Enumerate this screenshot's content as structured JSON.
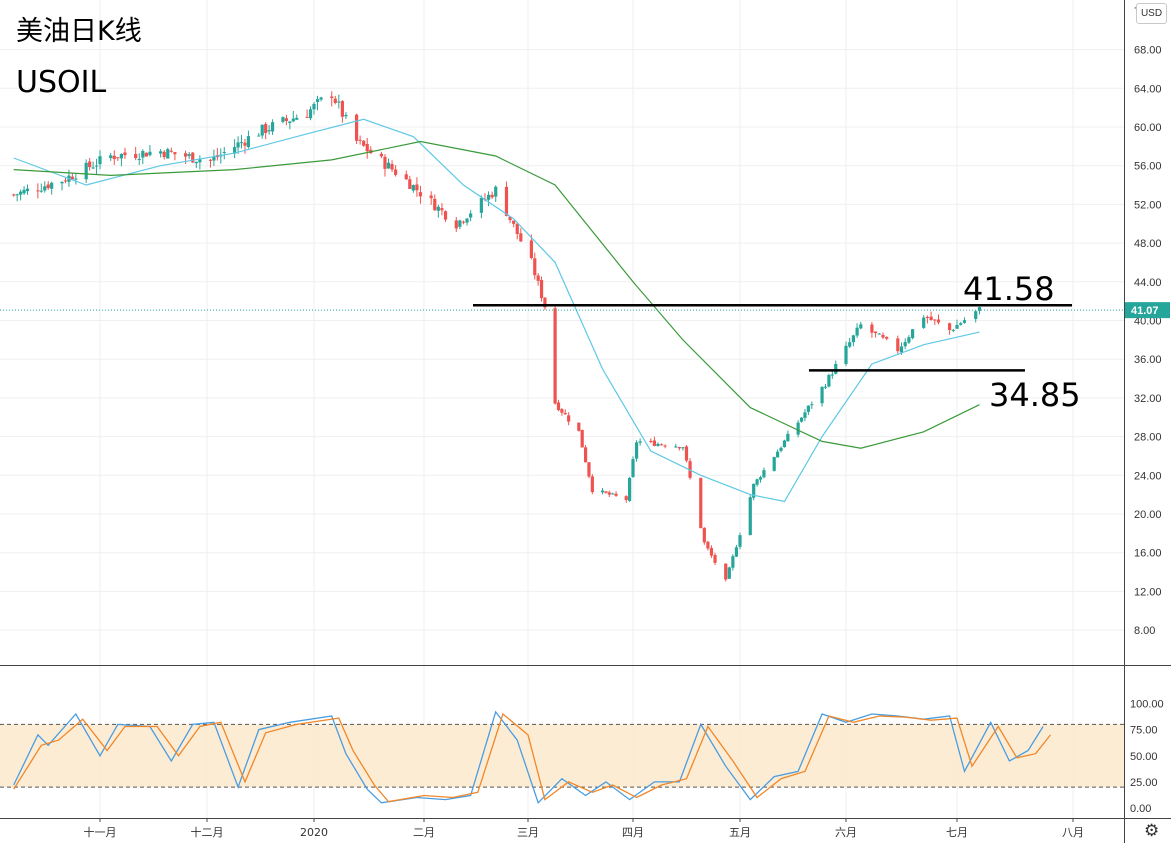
{
  "header": {
    "title_cn": "美油日K线",
    "title_symbol": "USOIL",
    "currency_button": "USD"
  },
  "settings_icon": "gear-icon",
  "levels": [
    {
      "value": 41.58,
      "label": "41.58"
    },
    {
      "value": 34.85,
      "label": "34.85"
    }
  ],
  "colors": {
    "up": "#26a69a",
    "down": "#ef5350",
    "sma_fast": "#5ec8e5",
    "sma_slow": "#3a9a3a",
    "stoch_k": "#4a9de0",
    "stoch_d": "#f0872a",
    "stoch_band": "#fde9cc"
  },
  "chart_data": [
    {
      "type": "candlestick",
      "title": "USOIL",
      "xaxis_ticks": [
        "十一月",
        "十二月",
        "2020",
        "二月",
        "三月",
        "四月",
        "五月",
        "六月",
        "七月",
        "八月"
      ],
      "yaxis_ticks": [
        "68.00",
        "64.00",
        "60.00",
        "56.00",
        "52.00",
        "48.00",
        "44.00",
        "40.00",
        "36.00",
        "32.00",
        "28.00",
        "24.00",
        "20.00",
        "16.00",
        "12.00",
        "8.00"
      ],
      "ylim": [
        4,
        69
      ],
      "last_price": "41.07",
      "horizontal_lines": [
        41.58,
        34.85
      ],
      "ohlc_anchors": [
        {
          "date": "2019-10-07",
          "close": 53.0
        },
        {
          "date": "2019-10-21",
          "close": 54.5
        },
        {
          "date": "2019-11-04",
          "close": 57.0
        },
        {
          "date": "2019-11-18",
          "close": 57.5
        },
        {
          "date": "2019-12-02",
          "close": 56.5
        },
        {
          "date": "2019-12-16",
          "close": 59.5
        },
        {
          "date": "2019-12-30",
          "close": 61.5
        },
        {
          "date": "2020-01-06",
          "close": 63.5
        },
        {
          "date": "2020-01-13",
          "close": 58.5
        },
        {
          "date": "2020-01-27",
          "close": 54.5
        },
        {
          "date": "2020-02-10",
          "close": 50.0
        },
        {
          "date": "2020-02-21",
          "close": 53.5
        },
        {
          "date": "2020-03-02",
          "close": 46.0
        },
        {
          "date": "2020-03-06",
          "close": 41.5
        },
        {
          "date": "2020-03-09",
          "close": 31.5
        },
        {
          "date": "2020-03-16",
          "close": 28.5
        },
        {
          "date": "2020-03-20",
          "close": 22.5
        },
        {
          "date": "2020-03-30",
          "close": 21.5
        },
        {
          "date": "2020-04-02",
          "close": 27.5
        },
        {
          "date": "2020-04-15",
          "close": 27.0
        },
        {
          "date": "2020-04-21",
          "close": 17.0
        },
        {
          "date": "2020-04-27",
          "close": 13.0
        },
        {
          "date": "2020-05-05",
          "close": 23.0
        },
        {
          "date": "2020-05-18",
          "close": 29.5
        },
        {
          "date": "2020-05-26",
          "close": 33.5
        },
        {
          "date": "2020-06-05",
          "close": 39.5
        },
        {
          "date": "2020-06-15",
          "close": 37.0
        },
        {
          "date": "2020-06-22",
          "close": 40.5
        },
        {
          "date": "2020-06-29",
          "close": 39.0
        },
        {
          "date": "2020-07-07",
          "close": 41.1
        }
      ],
      "series": [
        {
          "name": "",
          "type": "sma_fast",
          "points": [
            [
              "2019-10-07",
              56.8
            ],
            [
              "2019-10-28",
              54.0
            ],
            [
              "2019-11-18",
              56.0
            ],
            [
              "2019-12-09",
              57.3
            ],
            [
              "2019-12-30",
              59.3
            ],
            [
              "2020-01-15",
              60.8
            ],
            [
              "2020-01-29",
              59.0
            ],
            [
              "2020-02-12",
              54.0
            ],
            [
              "2020-02-26",
              50.5
            ],
            [
              "2020-03-09",
              46.0
            ],
            [
              "2020-03-23",
              35.0
            ],
            [
              "2020-04-06",
              26.5
            ],
            [
              "2020-04-20",
              24.0
            ],
            [
              "2020-05-04",
              22.0
            ],
            [
              "2020-05-14",
              21.3
            ],
            [
              "2020-05-25",
              28.0
            ],
            [
              "2020-06-08",
              35.5
            ],
            [
              "2020-06-22",
              37.5
            ],
            [
              "2020-07-07",
              38.8
            ]
          ]
        },
        {
          "name": "",
          "type": "sma_slow",
          "points": [
            [
              "2019-10-07",
              55.6
            ],
            [
              "2019-11-04",
              55.0
            ],
            [
              "2019-12-09",
              55.6
            ],
            [
              "2020-01-06",
              56.6
            ],
            [
              "2020-01-31",
              58.5
            ],
            [
              "2020-02-21",
              57.0
            ],
            [
              "2020-03-09",
              54.0
            ],
            [
              "2020-04-01",
              44.0
            ],
            [
              "2020-04-15",
              38.0
            ],
            [
              "2020-05-04",
              31.0
            ],
            [
              "2020-05-25",
              27.5
            ],
            [
              "2020-06-05",
              26.8
            ],
            [
              "2020-06-22",
              28.5
            ],
            [
              "2020-07-07",
              31.3
            ]
          ]
        }
      ]
    },
    {
      "type": "line",
      "title": "",
      "yaxis_ticks": [
        "100.00",
        "75.00",
        "50.00",
        "25.00",
        "0.00"
      ],
      "ylim": [
        -7,
        102
      ],
      "band": [
        20,
        80
      ],
      "series": [
        {
          "name": "",
          "key": "k",
          "points": [
            [
              "2019-10-07",
              22
            ],
            [
              "2019-10-14",
              70
            ],
            [
              "2019-10-17",
              60
            ],
            [
              "2019-10-25",
              90
            ],
            [
              "2019-11-01",
              50
            ],
            [
              "2019-11-06",
              80
            ],
            [
              "2019-11-15",
              78
            ],
            [
              "2019-11-21",
              45
            ],
            [
              "2019-11-27",
              80
            ],
            [
              "2019-12-03",
              82
            ],
            [
              "2019-12-10",
              20
            ],
            [
              "2019-12-16",
              75
            ],
            [
              "2019-12-25",
              82
            ],
            [
              "2020-01-06",
              88
            ],
            [
              "2020-01-10",
              52
            ],
            [
              "2020-01-16",
              18
            ],
            [
              "2020-01-20",
              5
            ],
            [
              "2020-01-30",
              10
            ],
            [
              "2020-02-07",
              8
            ],
            [
              "2020-02-14",
              12
            ],
            [
              "2020-02-21",
              92
            ],
            [
              "2020-02-27",
              65
            ],
            [
              "2020-03-04",
              5
            ],
            [
              "2020-03-11",
              28
            ],
            [
              "2020-03-18",
              12
            ],
            [
              "2020-03-24",
              25
            ],
            [
              "2020-03-31",
              8
            ],
            [
              "2020-04-07",
              25
            ],
            [
              "2020-04-14",
              25
            ],
            [
              "2020-04-20",
              80
            ],
            [
              "2020-04-27",
              40
            ],
            [
              "2020-05-04",
              8
            ],
            [
              "2020-05-11",
              30
            ],
            [
              "2020-05-18",
              35
            ],
            [
              "2020-05-25",
              90
            ],
            [
              "2020-06-01",
              82
            ],
            [
              "2020-06-08",
              90
            ],
            [
              "2020-06-15",
              88
            ],
            [
              "2020-06-22",
              85
            ],
            [
              "2020-06-29",
              88
            ],
            [
              "2020-07-03",
              35
            ],
            [
              "2020-07-10",
              82
            ],
            [
              "2020-07-15",
              45
            ],
            [
              "2020-07-20",
              55
            ],
            [
              "2020-07-24",
              78
            ]
          ]
        },
        {
          "name": "",
          "key": "d",
          "points": [
            [
              "2019-10-07",
              18
            ],
            [
              "2019-10-15",
              60
            ],
            [
              "2019-10-20",
              65
            ],
            [
              "2019-10-27",
              85
            ],
            [
              "2019-11-03",
              55
            ],
            [
              "2019-11-08",
              78
            ],
            [
              "2019-11-17",
              78
            ],
            [
              "2019-11-23",
              50
            ],
            [
              "2019-11-29",
              78
            ],
            [
              "2019-12-05",
              82
            ],
            [
              "2019-12-12",
              25
            ],
            [
              "2019-12-18",
              72
            ],
            [
              "2019-12-27",
              80
            ],
            [
              "2020-01-08",
              86
            ],
            [
              "2020-01-12",
              55
            ],
            [
              "2020-01-18",
              22
            ],
            [
              "2020-01-22",
              6
            ],
            [
              "2020-02-01",
              12
            ],
            [
              "2020-02-09",
              10
            ],
            [
              "2020-02-16",
              15
            ],
            [
              "2020-02-23",
              90
            ],
            [
              "2020-03-01",
              70
            ],
            [
              "2020-03-06",
              8
            ],
            [
              "2020-03-13",
              25
            ],
            [
              "2020-03-20",
              15
            ],
            [
              "2020-03-26",
              22
            ],
            [
              "2020-04-02",
              10
            ],
            [
              "2020-04-09",
              22
            ],
            [
              "2020-04-16",
              28
            ],
            [
              "2020-04-22",
              78
            ],
            [
              "2020-04-29",
              45
            ],
            [
              "2020-05-06",
              10
            ],
            [
              "2020-05-13",
              28
            ],
            [
              "2020-05-20",
              35
            ],
            [
              "2020-05-27",
              88
            ],
            [
              "2020-06-03",
              82
            ],
            [
              "2020-06-10",
              88
            ],
            [
              "2020-06-17",
              87
            ],
            [
              "2020-06-24",
              84
            ],
            [
              "2020-07-01",
              86
            ],
            [
              "2020-07-05",
              40
            ],
            [
              "2020-07-12",
              78
            ],
            [
              "2020-07-17",
              48
            ],
            [
              "2020-07-22",
              52
            ],
            [
              "2020-07-26",
              70
            ]
          ]
        }
      ]
    }
  ]
}
